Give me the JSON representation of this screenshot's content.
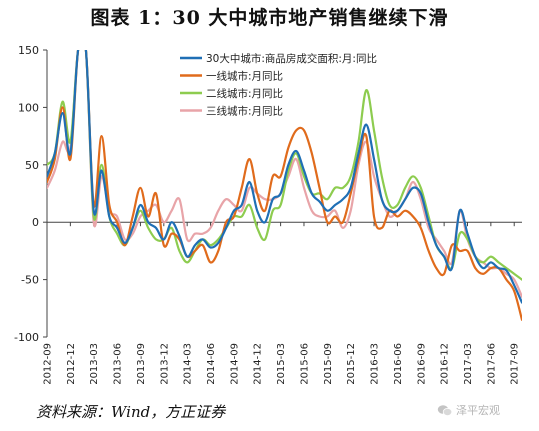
{
  "title": "图表 1：30 大中城市地产销售继续下滑",
  "source": "资料来源：Wind，方正证券",
  "watermark": "泽平宏观",
  "watermark_icon": "wechat-icon",
  "chart_data": {
    "type": "line",
    "xlabel": "",
    "ylabel": "",
    "ylim": [
      -100,
      150
    ],
    "yticks": [
      -100,
      -50,
      0,
      50,
      100,
      150
    ],
    "x_tick_labels": [
      "2012-09",
      "2012-12",
      "2013-03",
      "2013-06",
      "2013-09",
      "2013-12",
      "2014-03",
      "2014-06",
      "2014-09",
      "2014-12",
      "2015-03",
      "2015-06",
      "2015-09",
      "2015-12",
      "2016-03",
      "2016-06",
      "2016-09",
      "2016-12",
      "2017-03",
      "2017-06",
      "2017-09"
    ],
    "x_start": "2012-09",
    "x_end": "2017-10",
    "grid": false,
    "legend_position": "top-center",
    "series": [
      {
        "name": "30大中城市:商品房成交面积:月:同比",
        "color": "#1f6fb5",
        "points": [
          [
            "2012-09",
            40
          ],
          [
            "2012-10",
            60
          ],
          [
            "2012-11",
            95
          ],
          [
            "2012-12",
            60
          ],
          [
            "2013-01",
            150
          ],
          [
            "2013-02",
            150
          ],
          [
            "2013-03",
            10
          ],
          [
            "2013-04",
            45
          ],
          [
            "2013-05",
            5
          ],
          [
            "2013-06",
            -5
          ],
          [
            "2013-07",
            -18
          ],
          [
            "2013-08",
            -5
          ],
          [
            "2013-09",
            15
          ],
          [
            "2013-10",
            0
          ],
          [
            "2013-11",
            -5
          ],
          [
            "2013-12",
            -15
          ],
          [
            "2014-01",
            0
          ],
          [
            "2014-02",
            -12
          ],
          [
            "2014-03",
            -30
          ],
          [
            "2014-04",
            -20
          ],
          [
            "2014-05",
            -15
          ],
          [
            "2014-06",
            -22
          ],
          [
            "2014-07",
            -18
          ],
          [
            "2014-08",
            -5
          ],
          [
            "2014-09",
            10
          ],
          [
            "2014-10",
            15
          ],
          [
            "2014-11",
            35
          ],
          [
            "2014-12",
            10
          ],
          [
            "2015-01",
            0
          ],
          [
            "2015-02",
            20
          ],
          [
            "2015-03",
            25
          ],
          [
            "2015-04",
            50
          ],
          [
            "2015-05",
            62
          ],
          [
            "2015-06",
            45
          ],
          [
            "2015-07",
            25
          ],
          [
            "2015-08",
            18
          ],
          [
            "2015-09",
            10
          ],
          [
            "2015-10",
            15
          ],
          [
            "2015-11",
            20
          ],
          [
            "2015-12",
            30
          ],
          [
            "2016-01",
            60
          ],
          [
            "2016-02",
            85
          ],
          [
            "2016-03",
            55
          ],
          [
            "2016-04",
            20
          ],
          [
            "2016-05",
            10
          ],
          [
            "2016-06",
            10
          ],
          [
            "2016-07",
            20
          ],
          [
            "2016-08",
            30
          ],
          [
            "2016-09",
            25
          ],
          [
            "2016-10",
            0
          ],
          [
            "2016-11",
            -20
          ],
          [
            "2016-12",
            -30
          ],
          [
            "2017-01",
            -40
          ],
          [
            "2017-02",
            10
          ],
          [
            "2017-03",
            -10
          ],
          [
            "2017-04",
            -30
          ],
          [
            "2017-05",
            -40
          ],
          [
            "2017-06",
            -35
          ],
          [
            "2017-07",
            -40
          ],
          [
            "2017-08",
            -42
          ],
          [
            "2017-09",
            -55
          ],
          [
            "2017-10",
            -70
          ]
        ]
      },
      {
        "name": "一线城市:月同比",
        "color": "#e06b1c",
        "points": [
          [
            "2012-09",
            35
          ],
          [
            "2012-10",
            55
          ],
          [
            "2012-11",
            100
          ],
          [
            "2012-12",
            55
          ],
          [
            "2013-01",
            150
          ],
          [
            "2013-02",
            150
          ],
          [
            "2013-03",
            15
          ],
          [
            "2013-04",
            75
          ],
          [
            "2013-05",
            15
          ],
          [
            "2013-06",
            0
          ],
          [
            "2013-07",
            -20
          ],
          [
            "2013-08",
            5
          ],
          [
            "2013-09",
            30
          ],
          [
            "2013-10",
            5
          ],
          [
            "2013-11",
            25
          ],
          [
            "2013-12",
            -20
          ],
          [
            "2014-01",
            -10
          ],
          [
            "2014-02",
            -15
          ],
          [
            "2014-03",
            -30
          ],
          [
            "2014-04",
            -25
          ],
          [
            "2014-05",
            -20
          ],
          [
            "2014-06",
            -35
          ],
          [
            "2014-07",
            -25
          ],
          [
            "2014-08",
            0
          ],
          [
            "2014-09",
            5
          ],
          [
            "2014-10",
            30
          ],
          [
            "2014-11",
            55
          ],
          [
            "2014-12",
            25
          ],
          [
            "2015-01",
            10
          ],
          [
            "2015-02",
            40
          ],
          [
            "2015-03",
            40
          ],
          [
            "2015-04",
            65
          ],
          [
            "2015-05",
            80
          ],
          [
            "2015-06",
            80
          ],
          [
            "2015-07",
            60
          ],
          [
            "2015-08",
            30
          ],
          [
            "2015-09",
            0
          ],
          [
            "2015-10",
            5
          ],
          [
            "2015-11",
            0
          ],
          [
            "2015-12",
            25
          ],
          [
            "2016-01",
            55
          ],
          [
            "2016-02",
            75
          ],
          [
            "2016-03",
            5
          ],
          [
            "2016-04",
            -5
          ],
          [
            "2016-05",
            10
          ],
          [
            "2016-06",
            5
          ],
          [
            "2016-07",
            10
          ],
          [
            "2016-08",
            5
          ],
          [
            "2016-09",
            -5
          ],
          [
            "2016-10",
            -25
          ],
          [
            "2016-11",
            -40
          ],
          [
            "2016-12",
            -45
          ],
          [
            "2017-01",
            -20
          ],
          [
            "2017-02",
            -25
          ],
          [
            "2017-03",
            -25
          ],
          [
            "2017-04",
            -40
          ],
          [
            "2017-05",
            -45
          ],
          [
            "2017-06",
            -40
          ],
          [
            "2017-07",
            -40
          ],
          [
            "2017-08",
            -50
          ],
          [
            "2017-09",
            -60
          ],
          [
            "2017-10",
            -85
          ]
        ]
      },
      {
        "name": "二线城市:月同比",
        "color": "#8dcc4f",
        "points": [
          [
            "2012-09",
            50
          ],
          [
            "2012-10",
            60
          ],
          [
            "2012-11",
            105
          ],
          [
            "2012-12",
            70
          ],
          [
            "2013-01",
            150
          ],
          [
            "2013-02",
            150
          ],
          [
            "2013-03",
            5
          ],
          [
            "2013-04",
            50
          ],
          [
            "2013-05",
            5
          ],
          [
            "2013-06",
            -10
          ],
          [
            "2013-07",
            -20
          ],
          [
            "2013-08",
            -5
          ],
          [
            "2013-09",
            10
          ],
          [
            "2013-10",
            -5
          ],
          [
            "2013-11",
            -15
          ],
          [
            "2013-12",
            -15
          ],
          [
            "2014-01",
            -5
          ],
          [
            "2014-02",
            -25
          ],
          [
            "2014-03",
            -35
          ],
          [
            "2014-04",
            -25
          ],
          [
            "2014-05",
            -15
          ],
          [
            "2014-06",
            -20
          ],
          [
            "2014-07",
            -15
          ],
          [
            "2014-08",
            -5
          ],
          [
            "2014-09",
            5
          ],
          [
            "2014-10",
            5
          ],
          [
            "2014-11",
            15
          ],
          [
            "2014-12",
            -5
          ],
          [
            "2015-01",
            -15
          ],
          [
            "2015-02",
            10
          ],
          [
            "2015-03",
            15
          ],
          [
            "2015-04",
            45
          ],
          [
            "2015-05",
            60
          ],
          [
            "2015-06",
            40
          ],
          [
            "2015-07",
            25
          ],
          [
            "2015-08",
            25
          ],
          [
            "2015-09",
            20
          ],
          [
            "2015-10",
            30
          ],
          [
            "2015-11",
            30
          ],
          [
            "2015-12",
            40
          ],
          [
            "2016-01",
            70
          ],
          [
            "2016-02",
            115
          ],
          [
            "2016-03",
            80
          ],
          [
            "2016-04",
            40
          ],
          [
            "2016-05",
            15
          ],
          [
            "2016-06",
            15
          ],
          [
            "2016-07",
            30
          ],
          [
            "2016-08",
            40
          ],
          [
            "2016-09",
            30
          ],
          [
            "2016-10",
            5
          ],
          [
            "2016-11",
            -20
          ],
          [
            "2016-12",
            -30
          ],
          [
            "2017-01",
            -40
          ],
          [
            "2017-02",
            -10
          ],
          [
            "2017-03",
            -15
          ],
          [
            "2017-04",
            -30
          ],
          [
            "2017-05",
            -35
          ],
          [
            "2017-06",
            -30
          ],
          [
            "2017-07",
            -35
          ],
          [
            "2017-08",
            -40
          ],
          [
            "2017-09",
            -45
          ],
          [
            "2017-10",
            -50
          ]
        ]
      },
      {
        "name": "三线城市:月同比",
        "color": "#e8a4a8",
        "points": [
          [
            "2012-09",
            30
          ],
          [
            "2012-10",
            45
          ],
          [
            "2012-11",
            70
          ],
          [
            "2012-12",
            65
          ],
          [
            "2013-01",
            150
          ],
          [
            "2013-02",
            150
          ],
          [
            "2013-03",
            0
          ],
          [
            "2013-04",
            40
          ],
          [
            "2013-05",
            10
          ],
          [
            "2013-06",
            5
          ],
          [
            "2013-07",
            -15
          ],
          [
            "2013-08",
            -10
          ],
          [
            "2013-09",
            5
          ],
          [
            "2013-10",
            10
          ],
          [
            "2013-11",
            15
          ],
          [
            "2013-12",
            0
          ],
          [
            "2014-01",
            10
          ],
          [
            "2014-02",
            20
          ],
          [
            "2014-03",
            -15
          ],
          [
            "2014-04",
            -10
          ],
          [
            "2014-05",
            -10
          ],
          [
            "2014-06",
            -5
          ],
          [
            "2014-07",
            10
          ],
          [
            "2014-08",
            20
          ],
          [
            "2014-09",
            15
          ],
          [
            "2014-10",
            10
          ],
          [
            "2014-11",
            30
          ],
          [
            "2014-12",
            25
          ],
          [
            "2015-01",
            20
          ],
          [
            "2015-02",
            20
          ],
          [
            "2015-03",
            25
          ],
          [
            "2015-04",
            40
          ],
          [
            "2015-05",
            55
          ],
          [
            "2015-06",
            30
          ],
          [
            "2015-07",
            10
          ],
          [
            "2015-08",
            5
          ],
          [
            "2015-09",
            5
          ],
          [
            "2015-10",
            10
          ],
          [
            "2015-11",
            -5
          ],
          [
            "2015-12",
            10
          ],
          [
            "2016-01",
            50
          ],
          [
            "2016-02",
            70
          ],
          [
            "2016-03",
            40
          ],
          [
            "2016-04",
            20
          ],
          [
            "2016-05",
            5
          ],
          [
            "2016-06",
            10
          ],
          [
            "2016-07",
            20
          ],
          [
            "2016-08",
            35
          ],
          [
            "2016-09",
            20
          ],
          [
            "2016-10",
            -5
          ],
          [
            "2016-11",
            -15
          ],
          [
            "2016-12",
            -25
          ],
          [
            "2017-01",
            -35
          ],
          [
            "2017-02",
            10
          ],
          [
            "2017-03",
            -15
          ],
          [
            "2017-04",
            -30
          ],
          [
            "2017-05",
            -35
          ],
          [
            "2017-06",
            -40
          ],
          [
            "2017-07",
            -40
          ],
          [
            "2017-08",
            -45
          ],
          [
            "2017-09",
            -50
          ],
          [
            "2017-10",
            -65
          ]
        ]
      }
    ]
  }
}
